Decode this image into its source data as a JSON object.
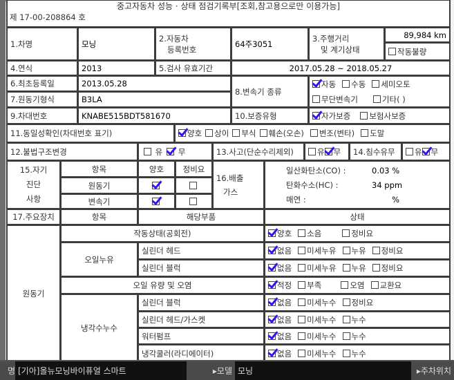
{
  "title": "중고자동차 성능 · 상태 점검기록부[조회,참고용으로만 이용가능]",
  "doc_no": "제 17-00-208864 호",
  "check_color": "#3a10f0",
  "r1": {
    "l1": "1.차명",
    "v1": "모닝",
    "l2a": "2.자동차",
    "l2b": "등록번호",
    "v2": "64주3051",
    "l3a": "3.주행거리",
    "l3b": "및 계기상태",
    "mileage": "89,984 km",
    "broken": "작동불량"
  },
  "r4": {
    "l4": "4.연식",
    "v4": "2013",
    "l5": "5.검사 유효기간",
    "v5": "2017.05.28 ~ 2018.05.27"
  },
  "r6": {
    "l6": "6.최초등록일",
    "v6": "2013.05.28",
    "l7": "7.원동기형식",
    "v7": "B3LA",
    "l8": "8.변속기 종류",
    "t": [
      "자동",
      "수동",
      "세미오토",
      "무단변속기",
      "기타(   )"
    ]
  },
  "r9": {
    "l9": "9.차대번호",
    "v9": "KNABE515BDT581670",
    "l10": "10.보증유형",
    "w": [
      "자가보증",
      "보험사보증"
    ]
  },
  "r11": {
    "l": "11.동일성확인(차대번호 표기)",
    "o": [
      "양호",
      "상이",
      "부식",
      "훼손(오손)",
      "변조(변타)",
      "도말"
    ]
  },
  "r12": {
    "l12": "12.불법구조변경",
    "l13": "13.사고(단순수리제외)",
    "l14": "14.침수유무",
    "yes": "유",
    "no": "무"
  },
  "r15": {
    "l": [
      "15.자기",
      "진단",
      "사항"
    ],
    "h1": "항목",
    "h2": "양호",
    "h3": "정비요",
    "engine": "원동기",
    "trans": "변속기",
    "l16a": "16.배출",
    "l16b": "가스",
    "co_l": "일산화탄소(CO) :",
    "co_v": "0.03 %",
    "hc_l": "탄화수소(HC) :",
    "hc_v": "34 ppm",
    "sm_l": "매연 :",
    "sm_v": "%"
  },
  "r17": {
    "l": "17.주요장치",
    "h1": "항목",
    "h2": "해당부품",
    "h3": "상태"
  },
  "engine": {
    "label": "원동기",
    "idle": {
      "item": "작동상태(공회전)",
      "o": [
        "양호",
        "소음",
        "정비요"
      ]
    },
    "oil_leak": "오일누유",
    "oil_rows": [
      {
        "part": "실린더 헤드",
        "o": [
          "없음",
          "미세누유",
          "누유",
          "정비요"
        ]
      },
      {
        "part": "실린더 블럭",
        "o": [
          "없음",
          "미세누유",
          "누유",
          "정비요"
        ]
      }
    ],
    "oil_level": {
      "item": "오일 유량 및 오염",
      "o": [
        "적정",
        "부족",
        "오염",
        "교환요"
      ]
    },
    "coolant": "냉각수누수",
    "cool_rows": [
      {
        "part": "실린더 블럭",
        "o": [
          "없음",
          "미세누수",
          "정비요"
        ]
      },
      {
        "part": "실린더 헤드/가스켓",
        "o": [
          "없음",
          "미세누수",
          "누수"
        ]
      },
      {
        "part": "워터펌프",
        "o": [
          "없음",
          "미세누수",
          "누수"
        ]
      },
      {
        "part": "냉각쿨러(라디에이터)",
        "o": [
          "없음",
          "미세누수",
          "누수"
        ]
      }
    ]
  },
  "bar": {
    "s0": "명",
    "model_full": "[기아]올뉴모닝바이퓨얼 스마트",
    "model_l": "▸모델",
    "model_v": "모닝",
    "park_l": "▸주차위치"
  }
}
